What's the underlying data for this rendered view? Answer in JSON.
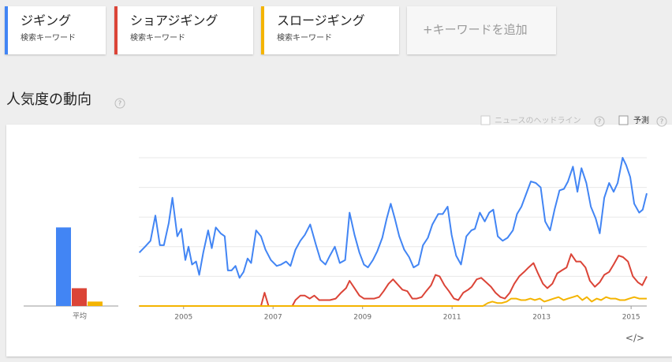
{
  "section_title": "人気度の動向",
  "help": "?",
  "keyword_hint": "検索キーワード",
  "add_keyword": "+キーワードを追加",
  "options": {
    "news": "ニュースのヘッドライン",
    "forecast": "予測"
  },
  "embed": "</>",
  "chart_data": [
    {
      "type": "bar",
      "categories": [
        "平均"
      ],
      "ylim": [
        0,
        100
      ],
      "series": [
        {
          "color": "#4285f4",
          "values": [
            53
          ]
        },
        {
          "color": "#db4437",
          "values": [
            12
          ]
        },
        {
          "color": "#f4b400",
          "values": [
            3
          ]
        }
      ]
    },
    {
      "type": "line",
      "xlim": [
        2004,
        2015.35
      ],
      "xticks": [
        2005,
        2007,
        2009,
        2011,
        2013,
        2015
      ],
      "ylim": [
        0,
        100
      ],
      "yticks": [
        0,
        20,
        40,
        60,
        80,
        100
      ],
      "grid": true,
      "series": [
        {
          "name": "ジギング",
          "color": "#4285f4",
          "x": [
            2004.01,
            2004.14,
            2004.26,
            2004.37,
            2004.47,
            2004.56,
            2004.67,
            2004.75,
            2004.86,
            2004.95,
            2005.04,
            2005.11,
            2005.19,
            2005.28,
            2005.35,
            2005.44,
            2005.55,
            2005.63,
            2005.72,
            2005.83,
            2005.92,
            2005.99,
            2006.07,
            2006.16,
            2006.25,
            2006.34,
            2006.43,
            2006.51,
            2006.62,
            2006.73,
            2006.83,
            2006.95,
            2007.08,
            2007.18,
            2007.29,
            2007.39,
            2007.5,
            2007.61,
            2007.71,
            2007.83,
            2007.96,
            2008.06,
            2008.17,
            2008.27,
            2008.38,
            2008.49,
            2008.61,
            2008.71,
            2008.82,
            2008.93,
            2009.03,
            2009.12,
            2009.23,
            2009.33,
            2009.44,
            2009.54,
            2009.63,
            2009.72,
            2009.82,
            2009.93,
            2010.04,
            2010.14,
            2010.25,
            2010.35,
            2010.46,
            2010.56,
            2010.69,
            2010.79,
            2010.9,
            2010.99,
            2011.09,
            2011.2,
            2011.32,
            2011.43,
            2011.51,
            2011.62,
            2011.73,
            2011.83,
            2011.92,
            2012.02,
            2012.13,
            2012.24,
            2012.36,
            2012.45,
            2012.55,
            2012.66,
            2012.76,
            2012.87,
            2012.98,
            2013.08,
            2013.19,
            2013.29,
            2013.4,
            2013.5,
            2013.59,
            2013.7,
            2013.8,
            2013.89,
            2014.0,
            2014.1,
            2014.21,
            2014.3,
            2014.4,
            2014.51,
            2014.61,
            2014.7,
            2014.81,
            2014.89,
            2014.98,
            2015.07,
            2015.18,
            2015.26,
            2015.35
          ],
          "values": [
            36,
            40,
            44,
            61,
            41,
            41,
            56,
            73,
            47,
            52,
            31,
            40,
            28,
            30,
            21,
            36,
            51,
            39,
            53,
            49,
            47,
            24,
            24,
            27,
            19,
            23,
            32,
            29,
            51,
            47,
            38,
            31,
            27,
            28,
            30,
            27,
            38,
            44,
            48,
            55,
            41,
            31,
            28,
            34,
            40,
            29,
            31,
            63,
            48,
            36,
            28,
            26,
            31,
            37,
            46,
            59,
            69,
            59,
            47,
            38,
            33,
            26,
            28,
            41,
            46,
            55,
            62,
            62,
            67,
            48,
            34,
            28,
            47,
            51,
            52,
            63,
            57,
            63,
            65,
            47,
            44,
            46,
            51,
            62,
            67,
            76,
            84,
            83,
            80,
            57,
            51,
            65,
            78,
            79,
            84,
            94,
            77,
            93,
            83,
            67,
            59,
            49,
            73,
            83,
            77,
            83,
            100,
            95,
            87,
            69,
            63,
            65,
            76
          ]
        },
        {
          "name": "ショアジギング",
          "color": "#db4437",
          "x": [
            2004.01,
            2006.73,
            2006.81,
            2006.9,
            2007.43,
            2007.5,
            2007.61,
            2007.71,
            2007.82,
            2007.92,
            2008.03,
            2008.13,
            2008.27,
            2008.4,
            2008.52,
            2008.63,
            2008.71,
            2008.82,
            2008.93,
            2009.03,
            2009.15,
            2009.26,
            2009.37,
            2009.47,
            2009.58,
            2009.68,
            2009.77,
            2009.89,
            2010.0,
            2010.11,
            2010.21,
            2010.32,
            2010.42,
            2010.53,
            2010.63,
            2010.72,
            2010.83,
            2010.93,
            2011.04,
            2011.14,
            2011.25,
            2011.36,
            2011.44,
            2011.55,
            2011.65,
            2011.76,
            2011.87,
            2011.97,
            2012.08,
            2012.18,
            2012.29,
            2012.39,
            2012.5,
            2012.61,
            2012.71,
            2012.82,
            2012.92,
            2013.03,
            2013.13,
            2013.24,
            2013.35,
            2013.45,
            2013.56,
            2013.66,
            2013.77,
            2013.87,
            2013.98,
            2014.08,
            2014.19,
            2014.3,
            2014.4,
            2014.51,
            2014.61,
            2014.72,
            2014.82,
            2014.93,
            2015.04,
            2015.15,
            2015.25,
            2015.35
          ],
          "values": [
            0,
            0,
            9,
            0,
            0,
            4,
            7,
            7,
            5,
            7,
            4,
            4,
            4,
            5,
            9,
            12,
            17,
            12,
            7,
            5,
            5,
            5,
            6,
            10,
            15,
            18,
            15,
            11,
            10,
            5,
            5,
            6,
            10,
            14,
            21,
            20,
            14,
            10,
            5,
            4,
            9,
            11,
            13,
            18,
            19,
            16,
            13,
            9,
            6,
            5,
            9,
            15,
            20,
            23,
            26,
            29,
            22,
            15,
            12,
            15,
            22,
            24,
            26,
            35,
            30,
            30,
            26,
            17,
            13,
            16,
            21,
            23,
            28,
            34,
            33,
            30,
            20,
            16,
            14,
            20
          ]
        },
        {
          "name": "スロージギング",
          "color": "#f4b400",
          "x": [
            2004.01,
            2011.69,
            2011.8,
            2011.9,
            2012.01,
            2012.11,
            2012.22,
            2012.32,
            2012.43,
            2012.54,
            2012.64,
            2012.75,
            2012.85,
            2012.96,
            2013.06,
            2013.17,
            2013.27,
            2013.38,
            2013.49,
            2013.59,
            2013.7,
            2013.8,
            2013.91,
            2014.01,
            2014.12,
            2014.23,
            2014.33,
            2014.44,
            2014.54,
            2014.65,
            2014.75,
            2014.86,
            2014.96,
            2015.07,
            2015.18,
            2015.28,
            2015.35
          ],
          "values": [
            0,
            0,
            2,
            3,
            2,
            2,
            3,
            5,
            5,
            4,
            4,
            5,
            4,
            5,
            3,
            4,
            5,
            6,
            4,
            5,
            6,
            7,
            4,
            6,
            3,
            5,
            4,
            6,
            5,
            5,
            4,
            4,
            5,
            6,
            5,
            5,
            5
          ]
        }
      ]
    }
  ]
}
